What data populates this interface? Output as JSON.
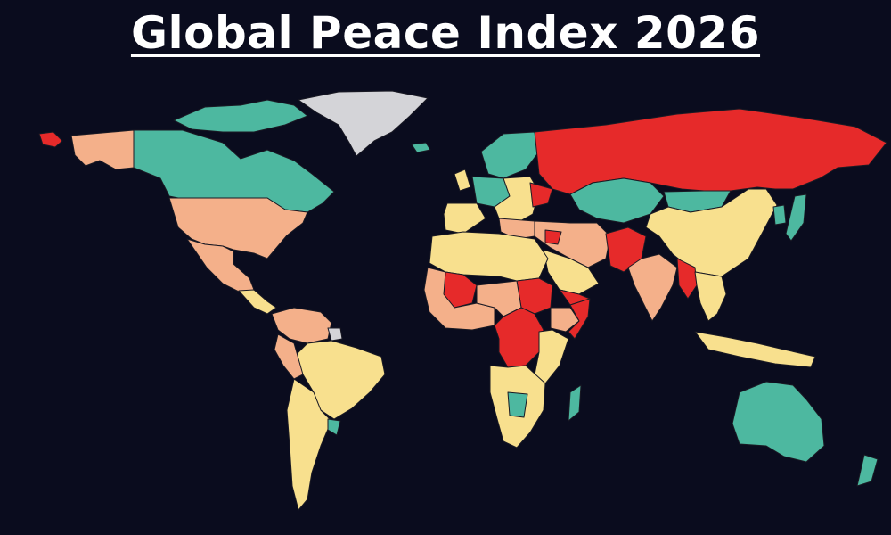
{
  "title": "Global Peace Index 2026",
  "colors": {
    "background": "#0a0c1e",
    "very_high_peace": "#4db8a0",
    "high_peace": "#f8e08e",
    "medium_peace": "#f4b08a",
    "low_peace": "#e62a2a",
    "not_included": "#d4d4d8"
  },
  "regions": [
    {
      "name": "alaska",
      "level": "low_peace"
    },
    {
      "name": "alaska-mainland",
      "level": "medium_peace"
    },
    {
      "name": "canada",
      "level": "very_high_peace"
    },
    {
      "name": "canadian-arctic-islands",
      "level": "very_high_peace"
    },
    {
      "name": "greenland",
      "level": "not_included"
    },
    {
      "name": "iceland",
      "level": "very_high_peace"
    },
    {
      "name": "united-states",
      "level": "medium_peace"
    },
    {
      "name": "mexico",
      "level": "medium_peace"
    },
    {
      "name": "central-america",
      "level": "high_peace"
    },
    {
      "name": "colombia-venezuela",
      "level": "medium_peace"
    },
    {
      "name": "guianas",
      "level": "not_included"
    },
    {
      "name": "brazil",
      "level": "high_peace"
    },
    {
      "name": "peru",
      "level": "medium_peace"
    },
    {
      "name": "argentina-chile",
      "level": "high_peace"
    },
    {
      "name": "uruguay",
      "level": "very_high_peace"
    },
    {
      "name": "scandinavia",
      "level": "very_high_peace"
    },
    {
      "name": "western-europe",
      "level": "very_high_peace"
    },
    {
      "name": "france-iberia",
      "level": "high_peace"
    },
    {
      "name": "uk-ireland",
      "level": "high_peace"
    },
    {
      "name": "eastern-europe",
      "level": "high_peace"
    },
    {
      "name": "ukraine",
      "level": "low_peace"
    },
    {
      "name": "russia",
      "level": "low_peace"
    },
    {
      "name": "kazakhstan-central-asia",
      "level": "very_high_peace"
    },
    {
      "name": "mongolia",
      "level": "very_high_peace"
    },
    {
      "name": "china",
      "level": "high_peace"
    },
    {
      "name": "middle-east",
      "level": "medium_peace"
    },
    {
      "name": "saudi-arabia",
      "level": "high_peace"
    },
    {
      "name": "yemen",
      "level": "low_peace"
    },
    {
      "name": "iran-levant",
      "level": "medium_peace"
    },
    {
      "name": "syria",
      "level": "low_peace"
    },
    {
      "name": "afghanistan-pakistan",
      "level": "low_peace"
    },
    {
      "name": "india",
      "level": "medium_peace"
    },
    {
      "name": "myanmar",
      "level": "low_peace"
    },
    {
      "name": "southeast-asia",
      "level": "high_peace"
    },
    {
      "name": "japan",
      "level": "very_high_peace"
    },
    {
      "name": "korea",
      "level": "very_high_peace"
    },
    {
      "name": "indonesia",
      "level": "high_peace"
    },
    {
      "name": "australia",
      "level": "very_high_peace"
    },
    {
      "name": "new-zealand",
      "level": "very_high_peace"
    },
    {
      "name": "north-africa",
      "level": "high_peace"
    },
    {
      "name": "mali-sahel",
      "level": "low_peace"
    },
    {
      "name": "west-africa",
      "level": "medium_peace"
    },
    {
      "name": "sudan",
      "level": "low_peace"
    },
    {
      "name": "ethiopia",
      "level": "medium_peace"
    },
    {
      "name": "somalia",
      "level": "low_peace"
    },
    {
      "name": "drc",
      "level": "low_peace"
    },
    {
      "name": "central-africa",
      "level": "medium_peace"
    },
    {
      "name": "east-africa",
      "level": "high_peace"
    },
    {
      "name": "southern-africa",
      "level": "high_peace"
    },
    {
      "name": "botswana-zambia",
      "level": "very_high_peace"
    },
    {
      "name": "madagascar",
      "level": "very_high_peace"
    }
  ]
}
